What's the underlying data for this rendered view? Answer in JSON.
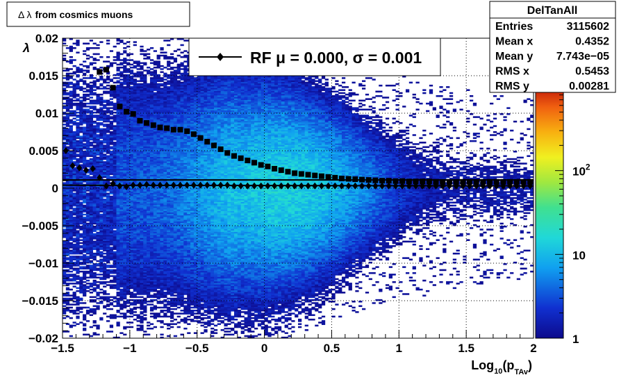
{
  "title_box": {
    "symbol": "Δ λ",
    "text": "from cosmics muons"
  },
  "stats_box": {
    "name": "DelTanAll",
    "rows": [
      {
        "label": "Entries",
        "value": "3115602"
      },
      {
        "label": "Mean x",
        "value": "0.4352"
      },
      {
        "label": "Mean y",
        "value": "7.743e−05"
      },
      {
        "label": "RMS x",
        "value": "0.5453"
      },
      {
        "label": "RMS y",
        "value": "0.00281"
      }
    ]
  },
  "legend": {
    "text": "RF μ =  0.000, σ =   0.001"
  },
  "colors": {
    "frame": "#000000",
    "marker": "#000000",
    "grid": "#000000"
  },
  "chart_data": {
    "type": "heatmap",
    "xlabel": {
      "main": "Log",
      "sub1": "10",
      "mid": "(p",
      "sub2": "TAv",
      "end": ")"
    },
    "ylabel": "λ",
    "xlim": [
      -1.5,
      2.0
    ],
    "ylim": [
      -0.02,
      0.02
    ],
    "xticks": [
      -1.5,
      -1,
      -0.5,
      0,
      0.5,
      1,
      1.5,
      2
    ],
    "xtick_labels": [
      "−1.5",
      "−1",
      "−0.5",
      "0",
      "0.5",
      "1",
      "1.5",
      "2"
    ],
    "yticks": [
      -0.02,
      -0.015,
      -0.01,
      -0.005,
      0,
      0.005,
      0.01,
      0.015,
      0.02
    ],
    "ytick_labels": [
      "−0.02",
      "−0.015",
      "−0.01",
      "−0.005",
      "0",
      "0.005",
      "0.01",
      "0.015",
      "0.02"
    ],
    "grid": true,
    "z_scale": "log",
    "zlim": [
      1,
      1000
    ],
    "zticks": [
      {
        "value": 1,
        "label": "1"
      },
      {
        "value": 10,
        "label": "10"
      },
      {
        "value": 100,
        "label": "10",
        "exp": "2"
      }
    ],
    "colormap": "rainbow",
    "sigma_series": {
      "marker": "square",
      "x": [
        -1.225,
        -1.175,
        -1.125,
        -1.075,
        -1.025,
        -0.975,
        -0.925,
        -0.875,
        -0.825,
        -0.775,
        -0.725,
        -0.675,
        -0.625,
        -0.575,
        -0.525,
        -0.475,
        -0.425,
        -0.375,
        -0.325,
        -0.275,
        -0.225,
        -0.175,
        -0.125,
        -0.075,
        -0.025,
        0.025,
        0.075,
        0.125,
        0.175,
        0.225,
        0.275,
        0.325,
        0.375,
        0.425,
        0.475,
        0.525,
        0.575,
        0.625,
        0.675,
        0.725,
        0.775,
        0.825,
        0.875,
        0.925,
        0.975,
        1.025,
        1.075,
        1.125,
        1.175,
        1.225,
        1.275,
        1.325,
        1.375,
        1.425,
        1.475,
        1.525,
        1.575,
        1.625,
        1.675,
        1.725,
        1.775,
        1.825,
        1.875,
        1.925,
        1.975
      ],
      "y": [
        0.0155,
        0.0158,
        0.0134,
        0.0109,
        0.0102,
        0.0099,
        0.009,
        0.0087,
        0.0084,
        0.0081,
        0.008,
        0.0078,
        0.0078,
        0.0076,
        0.0072,
        0.0067,
        0.0062,
        0.0057,
        0.0052,
        0.0047,
        0.0043,
        0.004,
        0.0037,
        0.0034,
        0.0031,
        0.0029,
        0.0026,
        0.0024,
        0.0022,
        0.002,
        0.0019,
        0.0018,
        0.0017,
        0.0016,
        0.0015,
        0.0014,
        0.0013,
        0.00125,
        0.0012,
        0.00115,
        0.0011,
        0.00105,
        0.001,
        0.001,
        0.00095,
        0.00095,
        0.0009,
        0.0009,
        0.0009,
        0.0009,
        0.00085,
        0.00085,
        0.00085,
        0.00085,
        0.00085,
        0.00085,
        0.00085,
        0.00085,
        0.00085,
        0.00085,
        0.00085,
        0.00085,
        0.00085,
        0.00085,
        0.00085
      ]
    },
    "mean_series": {
      "marker": "diamond",
      "x": [
        -1.475,
        -1.425,
        -1.375,
        -1.325,
        -1.275,
        -1.225,
        -1.175,
        -1.125,
        -1.075,
        -1.025,
        -0.975,
        -0.925,
        -0.875,
        -0.825,
        -0.775,
        -0.725,
        -0.675,
        -0.625,
        -0.575,
        -0.525,
        -0.475,
        -0.425,
        -0.375,
        -0.325,
        -0.275,
        -0.225,
        -0.175,
        -0.125,
        -0.075,
        -0.025,
        0.025,
        0.075,
        0.125,
        0.175,
        0.225,
        0.275,
        0.325,
        0.375,
        0.425,
        0.475,
        0.525,
        0.575,
        0.625,
        0.675,
        0.725,
        0.775,
        0.825,
        0.875,
        0.925,
        0.975,
        1.025,
        1.075,
        1.125,
        1.175,
        1.225,
        1.275,
        1.325,
        1.375,
        1.425,
        1.475,
        1.525,
        1.575,
        1.625,
        1.675,
        1.725,
        1.775,
        1.825,
        1.875,
        1.925,
        1.975
      ],
      "y": [
        0.005,
        0.003,
        0.0027,
        0.0024,
        0.0026,
        0.0014,
        0.0003,
        0.0006,
        0.0003,
        0.0002,
        0.0004,
        0.0004,
        0.0005,
        0.0004,
        0.0004,
        0.0004,
        0.0004,
        0.0004,
        0.0004,
        0.0004,
        0.0004,
        0.0004,
        0.0004,
        0.0004,
        0.0004,
        0.0003,
        0.0003,
        0.0003,
        0.0003,
        0.0003,
        0.0003,
        0.0003,
        0.0003,
        0.0003,
        0.0003,
        0.0003,
        0.0003,
        0.0003,
        0.0003,
        0.0003,
        0.0003,
        0.0003,
        0.0003,
        0.0003,
        0.0003,
        0.0003,
        0.0003,
        0.0003,
        0.0003,
        0.0003,
        0.0003,
        0.0003,
        0.0003,
        0.0003,
        0.0003,
        0.0003,
        0.0003,
        0.0003,
        0.0003,
        0.0003,
        0.0003,
        0.0003,
        0.0003,
        0.0003,
        0.0003,
        0.0003,
        0.0003,
        0.0003,
        0.0003,
        0.0003
      ]
    },
    "fit_line": {
      "x": [
        -1.5,
        2.0
      ],
      "y": [
        0.0004,
        0.0003
      ]
    },
    "sigma_fit_line": {
      "x": [
        -1.5,
        2.0
      ],
      "y": [
        0.0011,
        0.0011
      ]
    }
  }
}
